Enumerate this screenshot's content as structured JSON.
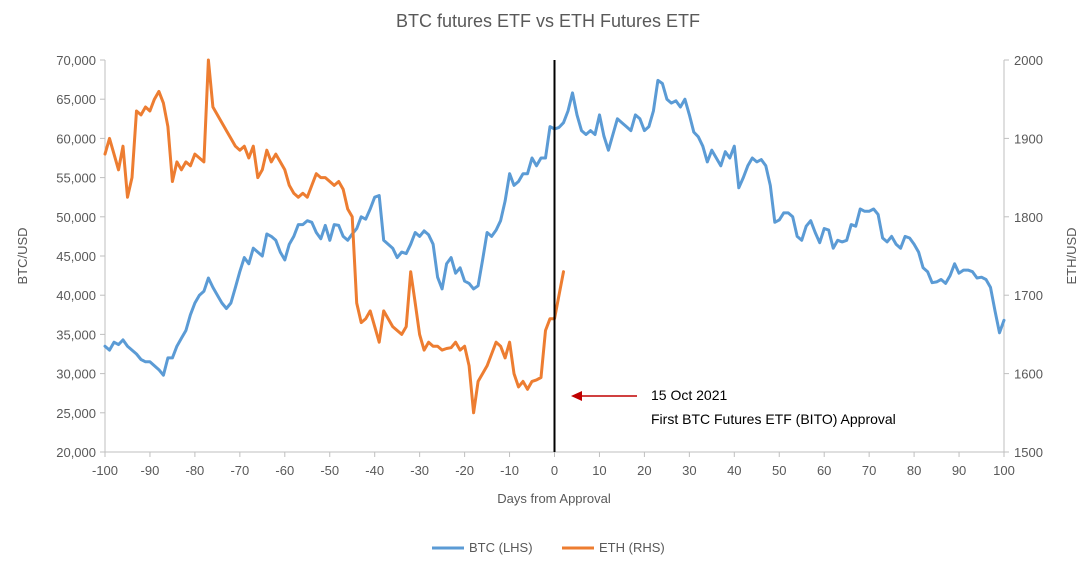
{
  "chart_data": {
    "type": "line",
    "title": "BTC futures ETF vs ETH Futures ETF",
    "xlabel": "Days from Approval",
    "ylabel_left": "BTC/USD",
    "ylabel_right": "ETH/USD",
    "xlim": [
      -100,
      100
    ],
    "ylim_left": [
      20000,
      70000
    ],
    "ylim_right": [
      1500,
      2000
    ],
    "x_ticks": [
      "-100",
      "-90",
      "-80",
      "-70",
      "-60",
      "-50",
      "-40",
      "-30",
      "-20",
      "-10",
      "0",
      "10",
      "20",
      "30",
      "40",
      "50",
      "60",
      "70",
      "80",
      "90",
      "100"
    ],
    "y_left_ticks": [
      "20,000",
      "25,000",
      "30,000",
      "35,000",
      "40,000",
      "45,000",
      "50,000",
      "55,000",
      "60,000",
      "65,000",
      "70,000"
    ],
    "y_right_ticks": [
      "1500",
      "1600",
      "1700",
      "1800",
      "1900",
      "2000"
    ],
    "grid": false,
    "legend_position": "bottom",
    "vertical_marker_x": 0,
    "annotation": {
      "line1": "15 Oct 2021",
      "line2": "First BTC Futures ETF (BITO) Approval"
    },
    "series": [
      {
        "name": "BTC (LHS)",
        "axis": "left",
        "color": "#5B9BD5",
        "points": [
          [
            -100,
            33500
          ],
          [
            -99,
            33000
          ],
          [
            -98,
            34000
          ],
          [
            -97,
            33700
          ],
          [
            -96,
            34300
          ],
          [
            -95,
            33500
          ],
          [
            -94,
            33000
          ],
          [
            -93,
            32500
          ],
          [
            -92,
            31800
          ],
          [
            -91,
            31500
          ],
          [
            -90,
            31500
          ],
          [
            -89,
            31000
          ],
          [
            -88,
            30500
          ],
          [
            -87,
            29800
          ],
          [
            -86,
            32000
          ],
          [
            -85,
            32000
          ],
          [
            -84,
            33500
          ],
          [
            -83,
            34500
          ],
          [
            -82,
            35500
          ],
          [
            -81,
            37500
          ],
          [
            -80,
            39000
          ],
          [
            -79,
            40000
          ],
          [
            -78,
            40500
          ],
          [
            -77,
            42200
          ],
          [
            -76,
            41000
          ],
          [
            -75,
            40000
          ],
          [
            -74,
            39000
          ],
          [
            -73,
            38300
          ],
          [
            -72,
            39000
          ],
          [
            -71,
            41000
          ],
          [
            -70,
            43000
          ],
          [
            -69,
            44800
          ],
          [
            -68,
            44000
          ],
          [
            -67,
            46000
          ],
          [
            -66,
            45500
          ],
          [
            -65,
            45000
          ],
          [
            -64,
            47800
          ],
          [
            -63,
            47500
          ],
          [
            -62,
            47000
          ],
          [
            -61,
            45500
          ],
          [
            -60,
            44500
          ],
          [
            -59,
            46500
          ],
          [
            -58,
            47500
          ],
          [
            -57,
            49000
          ],
          [
            -56,
            49000
          ],
          [
            -55,
            49500
          ],
          [
            -54,
            49300
          ],
          [
            -53,
            48000
          ],
          [
            -52,
            47200
          ],
          [
            -51,
            48900
          ],
          [
            -50,
            47000
          ],
          [
            -49,
            49000
          ],
          [
            -48,
            48900
          ],
          [
            -47,
            47500
          ],
          [
            -46,
            47000
          ],
          [
            -45,
            47800
          ],
          [
            -44,
            48500
          ],
          [
            -43,
            50000
          ],
          [
            -42,
            49700
          ],
          [
            -41,
            51000
          ],
          [
            -40,
            52500
          ],
          [
            -39,
            52700
          ],
          [
            -38,
            47000
          ],
          [
            -37,
            46500
          ],
          [
            -36,
            46000
          ],
          [
            -35,
            44800
          ],
          [
            -34,
            45500
          ],
          [
            -33,
            45300
          ],
          [
            -32,
            46500
          ],
          [
            -31,
            48000
          ],
          [
            -30,
            47500
          ],
          [
            -29,
            48200
          ],
          [
            -28,
            47700
          ],
          [
            -27,
            46500
          ],
          [
            -26,
            42300
          ],
          [
            -25,
            40800
          ],
          [
            -24,
            44000
          ],
          [
            -23,
            44800
          ],
          [
            -22,
            42800
          ],
          [
            -21,
            43500
          ],
          [
            -20,
            41800
          ],
          [
            -19,
            41500
          ],
          [
            -18,
            40800
          ],
          [
            -17,
            41200
          ],
          [
            -16,
            44500
          ],
          [
            -15,
            48000
          ],
          [
            -14,
            47500
          ],
          [
            -13,
            48300
          ],
          [
            -12,
            49500
          ],
          [
            -11,
            52000
          ],
          [
            -10,
            55500
          ],
          [
            -9,
            54000
          ],
          [
            -8,
            54500
          ],
          [
            -7,
            55500
          ],
          [
            -6,
            55500
          ],
          [
            -5,
            57500
          ],
          [
            -4,
            56500
          ],
          [
            -3,
            57500
          ],
          [
            -2,
            57500
          ],
          [
            -1,
            61500
          ],
          [
            0,
            61200
          ],
          [
            1,
            61400
          ],
          [
            2,
            62000
          ],
          [
            3,
            63500
          ],
          [
            4,
            65800
          ],
          [
            5,
            63000
          ],
          [
            6,
            61000
          ],
          [
            7,
            60500
          ],
          [
            8,
            61000
          ],
          [
            9,
            60500
          ],
          [
            10,
            63000
          ],
          [
            11,
            60300
          ],
          [
            12,
            58500
          ],
          [
            13,
            60500
          ],
          [
            14,
            62500
          ],
          [
            15,
            62000
          ],
          [
            16,
            61500
          ],
          [
            17,
            61000
          ],
          [
            18,
            63000
          ],
          [
            19,
            62500
          ],
          [
            20,
            61000
          ],
          [
            21,
            61500
          ],
          [
            22,
            63500
          ],
          [
            23,
            67400
          ],
          [
            24,
            67000
          ],
          [
            25,
            65000
          ],
          [
            26,
            64500
          ],
          [
            27,
            64800
          ],
          [
            28,
            64000
          ],
          [
            29,
            65000
          ],
          [
            30,
            63000
          ],
          [
            31,
            60800
          ],
          [
            32,
            60200
          ],
          [
            33,
            59000
          ],
          [
            34,
            57000
          ],
          [
            35,
            58500
          ],
          [
            36,
            57500
          ],
          [
            37,
            56500
          ],
          [
            38,
            58300
          ],
          [
            39,
            57500
          ],
          [
            40,
            59000
          ],
          [
            41,
            53700
          ],
          [
            42,
            55000
          ],
          [
            43,
            56500
          ],
          [
            44,
            57500
          ],
          [
            45,
            57000
          ],
          [
            46,
            57300
          ],
          [
            47,
            56500
          ],
          [
            48,
            54000
          ],
          [
            49,
            49300
          ],
          [
            50,
            49600
          ],
          [
            51,
            50500
          ],
          [
            52,
            50500
          ],
          [
            53,
            50000
          ],
          [
            54,
            47500
          ],
          [
            55,
            47000
          ],
          [
            56,
            48800
          ],
          [
            57,
            49500
          ],
          [
            58,
            48000
          ],
          [
            59,
            46700
          ],
          [
            60,
            48500
          ],
          [
            61,
            48300
          ],
          [
            62,
            46000
          ],
          [
            63,
            47000
          ],
          [
            64,
            46800
          ],
          [
            65,
            47000
          ],
          [
            66,
            49000
          ],
          [
            67,
            48800
          ],
          [
            68,
            51000
          ],
          [
            69,
            50700
          ],
          [
            70,
            50700
          ],
          [
            71,
            51000
          ],
          [
            72,
            50300
          ],
          [
            73,
            47300
          ],
          [
            74,
            46800
          ],
          [
            75,
            47500
          ],
          [
            76,
            46500
          ],
          [
            77,
            46000
          ],
          [
            78,
            47500
          ],
          [
            79,
            47300
          ],
          [
            80,
            46500
          ],
          [
            81,
            45500
          ],
          [
            82,
            43500
          ],
          [
            83,
            43000
          ],
          [
            84,
            41600
          ],
          [
            85,
            41700
          ],
          [
            86,
            42000
          ],
          [
            87,
            41500
          ],
          [
            88,
            42500
          ],
          [
            89,
            44000
          ],
          [
            90,
            42800
          ],
          [
            91,
            43200
          ],
          [
            92,
            43200
          ],
          [
            93,
            43000
          ],
          [
            94,
            42200
          ],
          [
            95,
            42300
          ],
          [
            96,
            42000
          ],
          [
            97,
            41000
          ],
          [
            98,
            38000
          ],
          [
            99,
            35200
          ],
          [
            100,
            36800
          ]
        ]
      },
      {
        "name": "ETH (RHS)",
        "axis": "right",
        "color": "#ED7D31",
        "points": [
          [
            -100,
            1880
          ],
          [
            -99,
            1900
          ],
          [
            -98,
            1880
          ],
          [
            -97,
            1860
          ],
          [
            -96,
            1890
          ],
          [
            -95,
            1825
          ],
          [
            -94,
            1850
          ],
          [
            -93,
            1935
          ],
          [
            -92,
            1930
          ],
          [
            -91,
            1940
          ],
          [
            -90,
            1935
          ],
          [
            -89,
            1950
          ],
          [
            -88,
            1960
          ],
          [
            -87,
            1945
          ],
          [
            -86,
            1915
          ],
          [
            -85,
            1845
          ],
          [
            -84,
            1870
          ],
          [
            -83,
            1860
          ],
          [
            -82,
            1870
          ],
          [
            -81,
            1865
          ],
          [
            -80,
            1880
          ],
          [
            -79,
            1875
          ],
          [
            -78,
            1870
          ],
          [
            -77,
            2000
          ],
          [
            -76,
            1940
          ],
          [
            -75,
            1930
          ],
          [
            -74,
            1920
          ],
          [
            -73,
            1910
          ],
          [
            -72,
            1900
          ],
          [
            -71,
            1890
          ],
          [
            -70,
            1885
          ],
          [
            -69,
            1890
          ],
          [
            -68,
            1875
          ],
          [
            -67,
            1890
          ],
          [
            -66,
            1850
          ],
          [
            -65,
            1860
          ],
          [
            -64,
            1885
          ],
          [
            -63,
            1870
          ],
          [
            -62,
            1880
          ],
          [
            -61,
            1870
          ],
          [
            -60,
            1860
          ],
          [
            -59,
            1840
          ],
          [
            -58,
            1830
          ],
          [
            -57,
            1825
          ],
          [
            -56,
            1830
          ],
          [
            -55,
            1825
          ],
          [
            -54,
            1840
          ],
          [
            -53,
            1855
          ],
          [
            -52,
            1850
          ],
          [
            -51,
            1850
          ],
          [
            -50,
            1845
          ],
          [
            -49,
            1840
          ],
          [
            -48,
            1845
          ],
          [
            -47,
            1835
          ],
          [
            -46,
            1810
          ],
          [
            -45,
            1800
          ],
          [
            -44,
            1690
          ],
          [
            -43,
            1665
          ],
          [
            -42,
            1670
          ],
          [
            -41,
            1680
          ],
          [
            -40,
            1660
          ],
          [
            -39,
            1640
          ],
          [
            -38,
            1680
          ],
          [
            -37,
            1670
          ],
          [
            -36,
            1660
          ],
          [
            -35,
            1655
          ],
          [
            -34,
            1650
          ],
          [
            -33,
            1660
          ],
          [
            -32,
            1730
          ],
          [
            -31,
            1690
          ],
          [
            -30,
            1650
          ],
          [
            -29,
            1630
          ],
          [
            -28,
            1640
          ],
          [
            -27,
            1635
          ],
          [
            -26,
            1635
          ],
          [
            -25,
            1630
          ],
          [
            -24,
            1632
          ],
          [
            -23,
            1633
          ],
          [
            -22,
            1640
          ],
          [
            -21,
            1630
          ],
          [
            -20,
            1635
          ],
          [
            -19,
            1610
          ],
          [
            -18,
            1550
          ],
          [
            -17,
            1590
          ],
          [
            -16,
            1600
          ],
          [
            -15,
            1610
          ],
          [
            -14,
            1625
          ],
          [
            -13,
            1640
          ],
          [
            -12,
            1635
          ],
          [
            -11,
            1620
          ],
          [
            -10,
            1640
          ],
          [
            -9,
            1600
          ],
          [
            -8,
            1583
          ],
          [
            -7,
            1590
          ],
          [
            -6,
            1580
          ],
          [
            -5,
            1590
          ],
          [
            -4,
            1592
          ],
          [
            -3,
            1595
          ],
          [
            -2,
            1655
          ],
          [
            -1,
            1670
          ],
          [
            0,
            1670
          ],
          [
            1,
            1700
          ],
          [
            2,
            1730
          ]
        ]
      }
    ]
  }
}
